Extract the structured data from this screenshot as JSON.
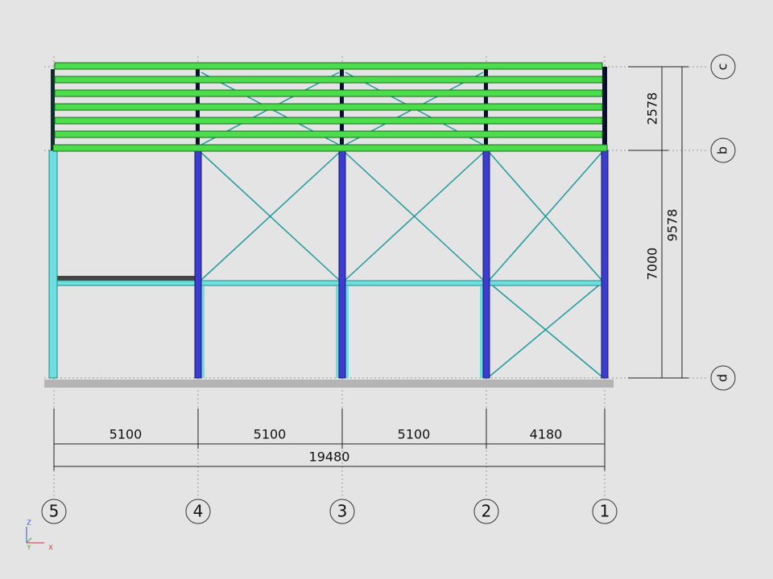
{
  "dimensions": {
    "bay_5_4": "5100",
    "bay_4_3": "5100",
    "bay_3_2": "5100",
    "bay_2_1": "4180",
    "total_width": "19480",
    "height_b_c": "2578",
    "height_d_b": "7000",
    "total_height": "9578"
  },
  "grid_levels": [
    "c",
    "b",
    "d"
  ],
  "grid_axes": [
    "5",
    "4",
    "3",
    "2",
    "1"
  ],
  "axis_labels": {
    "z": "Z",
    "y": "Y",
    "x": "X"
  }
}
